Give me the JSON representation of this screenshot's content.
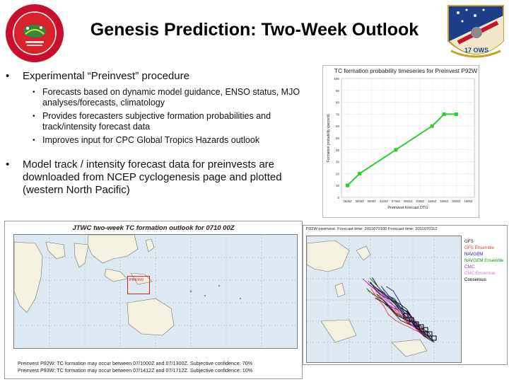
{
  "slide": {
    "title": "Genesis Prediction: Two-Week Outlook"
  },
  "bullets": [
    {
      "text": "Experimental “Preinvest” procedure",
      "sub": [
        "Forecasts based on dynamic model guidance, ENSO status, MJO analyses/forecasts, climatology",
        "Provides forecasters subjective formation probabilities and track/intensity forecast data",
        "Improves input for CPC Global Tropics Hazards outlook"
      ]
    },
    {
      "text": "Model track / intensity forecast data for preinvests are downloaded from NCEP cyclogenesis page and plotted (western North Pacific)"
    }
  ],
  "logos": {
    "left": "circular-unit-emblem",
    "right": "17 OWS"
  },
  "chart_data": {
    "type": "line",
    "title": "TC formation probability timeseries for Preinvest P92W",
    "xlabel": "Preinvest forecast DTG",
    "ylabel": "Formation probability (percent)",
    "ylim": [
      0,
      100
    ],
    "yticks": [
      0,
      10,
      20,
      30,
      40,
      50,
      60,
      70,
      80,
      90,
      100
    ],
    "categories": [
      "2506Z",
      "3006Z",
      "0506Z",
      "0106Z",
      "0706Z",
      "0806Z",
      "1006Z",
      "1506Z",
      "1806Z",
      "2006Z",
      "1906Z"
    ],
    "series": [
      {
        "name": "",
        "x": [
          "2506Z",
          "3006Z",
          "0706Z",
          "1506Z",
          "1806Z",
          "2006Z"
        ],
        "values": [
          10,
          20,
          40,
          60,
          70,
          70
        ]
      }
    ],
    "color": "#2ecc2e",
    "grid": true
  },
  "map_left": {
    "title": "JTWC two-week TC formation outlook for 0710 00Z",
    "box_label": "PREINV",
    "captions": [
      "Preinvest P92W: TC formation may occur between 07/1000Z and 07/1300Z. Subjective confidence: 70%",
      "Preinvest P93W: TC formation may occur between 07/1412Z and 07/1712Z. Subjective confidence: 10%"
    ]
  },
  "map_right": {
    "header": "P92W preinvest. Forecast time: 2011070100  Forecast time: 2011070112",
    "legend": [
      {
        "label": "GFS",
        "color": "#222222"
      },
      {
        "label": "GFS Ensemble",
        "color": "#e23b3b"
      },
      {
        "label": "NAVGEM",
        "color": "#1a1ab8"
      },
      {
        "label": "NAVGEM Ensemble",
        "color": "#1a8a1a"
      },
      {
        "label": "CMC",
        "color": "#b02bb0"
      },
      {
        "label": "CMC Ensemble",
        "color": "#e07be0"
      },
      {
        "label": "Consensus",
        "color": "#000000"
      }
    ]
  }
}
